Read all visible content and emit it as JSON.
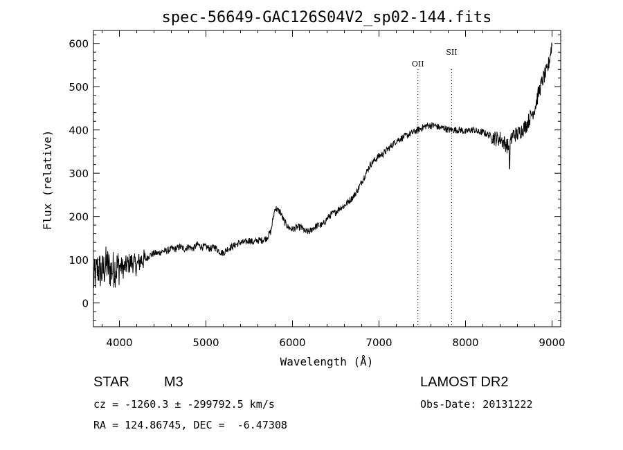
{
  "chart_data": {
    "type": "line",
    "title": "spec-56649-GAC126S04V2_sp02-144.fits",
    "xlabel": "Wavelength (Å)",
    "ylabel": "Flux (relative)",
    "xlim": [
      3700,
      9100
    ],
    "ylim": [
      -55,
      630
    ],
    "xticks": [
      4000,
      5000,
      6000,
      7000,
      8000,
      9000
    ],
    "yticks": [
      0,
      100,
      200,
      300,
      400,
      500,
      600
    ],
    "line_color": "#000000",
    "grid": false,
    "spectral_lines": [
      {
        "name": "OII",
        "x": 7450
      },
      {
        "name": "SII",
        "x": 7840
      }
    ],
    "series": [
      {
        "x": [
          3700,
          3750,
          3800,
          3850,
          3900,
          3950,
          4000,
          4050,
          4100,
          4150,
          4200,
          4250,
          4300,
          4350,
          4400,
          4450,
          4500,
          4550,
          4600,
          4650,
          4700,
          4750,
          4800,
          4850,
          4900,
          4950,
          5000,
          5050,
          5100,
          5150,
          5200,
          5250,
          5300,
          5350,
          5400,
          5450,
          5500,
          5550,
          5600,
          5650,
          5700,
          5750,
          5780,
          5800,
          5830,
          5860,
          5900,
          5950,
          6000,
          6050,
          6100,
          6150,
          6200,
          6250,
          6300,
          6350,
          6400,
          6450,
          6500,
          6550,
          6600,
          6650,
          6700,
          6750,
          6800,
          6850,
          6900,
          6950,
          7000,
          7050,
          7100,
          7150,
          7200,
          7250,
          7300,
          7350,
          7400,
          7450,
          7500,
          7550,
          7600,
          7650,
          7700,
          7750,
          7800,
          7850,
          7900,
          7950,
          8000,
          8050,
          8100,
          8150,
          8200,
          8250,
          8300,
          8350,
          8400,
          8450,
          8500,
          8550,
          8600,
          8650,
          8700,
          8750,
          8800,
          8850,
          8900,
          8950,
          9000
        ],
        "y": [
          50,
          80,
          70,
          90,
          75,
          80,
          85,
          80,
          90,
          95,
          85,
          100,
          100,
          110,
          115,
          115,
          120,
          120,
          125,
          125,
          130,
          125,
          130,
          125,
          135,
          130,
          130,
          125,
          130,
          120,
          115,
          125,
          130,
          135,
          140,
          140,
          145,
          140,
          145,
          145,
          150,
          165,
          200,
          220,
          215,
          210,
          190,
          175,
          170,
          175,
          175,
          165,
          165,
          175,
          180,
          180,
          195,
          205,
          210,
          220,
          225,
          235,
          245,
          260,
          280,
          300,
          320,
          330,
          340,
          345,
          355,
          365,
          375,
          380,
          385,
          390,
          395,
          400,
          405,
          410,
          410,
          410,
          405,
          405,
          400,
          400,
          400,
          400,
          395,
          400,
          400,
          395,
          395,
          390,
          385,
          380,
          380,
          370,
          360,
          390,
          390,
          400,
          410,
          430,
          450,
          490,
          520,
          540,
          600
        ]
      }
    ]
  },
  "info": {
    "object_class": "STAR",
    "subclass": "M3",
    "survey": "LAMOST DR2",
    "cz": "cz = -1260.3 ± -299792.5 km/s",
    "obs_date": "Obs-Date: 20131222",
    "coords": "RA = 124.86745, DEC =  -6.47308"
  }
}
